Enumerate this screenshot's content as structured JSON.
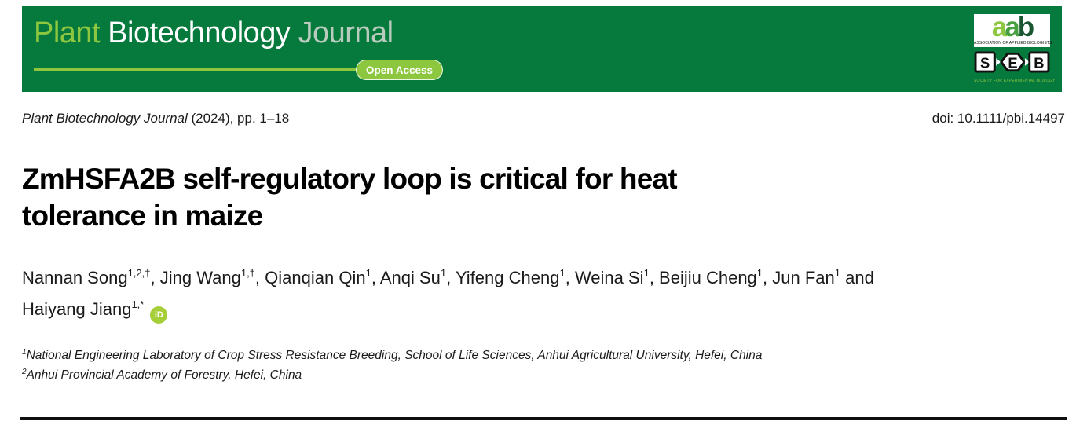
{
  "colors": {
    "banner_green": "#067A3D",
    "accent_green": "#8DC63F",
    "journal_word_green": "#B8CBBC",
    "orcid_green": "#A6CE39"
  },
  "banner": {
    "word_plant": "Plant",
    "word_biotechnology": "Biotechnology",
    "word_journal": "Journal",
    "open_access_label": "Open Access"
  },
  "logos": {
    "aab": {
      "l1": "a",
      "l2": "a",
      "l3": "b",
      "subtext": "ASSOCIATION OF APPLIED BIOLOGISTS"
    },
    "seb": {
      "s": "S",
      "e": "E",
      "b": "B",
      "subtext": "SOCIETY FOR EXPERIMENTAL BIOLOGY"
    }
  },
  "citation": {
    "journal": "Plant Biotechnology Journal",
    "issue_pages": " (2024), pp. 1–18",
    "doi": "doi: 10.1111/pbi.14497"
  },
  "article": {
    "title_lines": [
      "ZmHSFA2B self-regulatory loop is critical for heat",
      "tolerance in maize"
    ],
    "authors": [
      {
        "name": "Nannan Song",
        "sup": "1,2,†",
        "sep_after": ", "
      },
      {
        "name": "Jing Wang",
        "sup": "1,†",
        "sep_after": ", "
      },
      {
        "name": "Qianqian Qin",
        "sup": "1",
        "sep_after": ", "
      },
      {
        "name": "Anqi Su",
        "sup": "1",
        "sep_after": ", "
      },
      {
        "name": "Yifeng Cheng",
        "sup": "1",
        "sep_after": ", "
      },
      {
        "name": "Weina Si",
        "sup": "1",
        "sep_after": ", "
      },
      {
        "name": "Beijiu Cheng",
        "sup": "1",
        "sep_after": ", "
      },
      {
        "name": "Jun Fan",
        "sup": "1",
        "sep_after": " and",
        "break_after": true
      },
      {
        "name": "Haiyang Jiang",
        "sup": "1,*",
        "sep_after": ""
      }
    ],
    "orcid_label": "iD",
    "affiliations": [
      {
        "sup": "1",
        "text": "National Engineering Laboratory of Crop Stress Resistance Breeding, School of Life Sciences, Anhui Agricultural University, Hefei, China"
      },
      {
        "sup": "2",
        "text": "Anhui Provincial Academy of Forestry, Hefei, China"
      }
    ]
  }
}
